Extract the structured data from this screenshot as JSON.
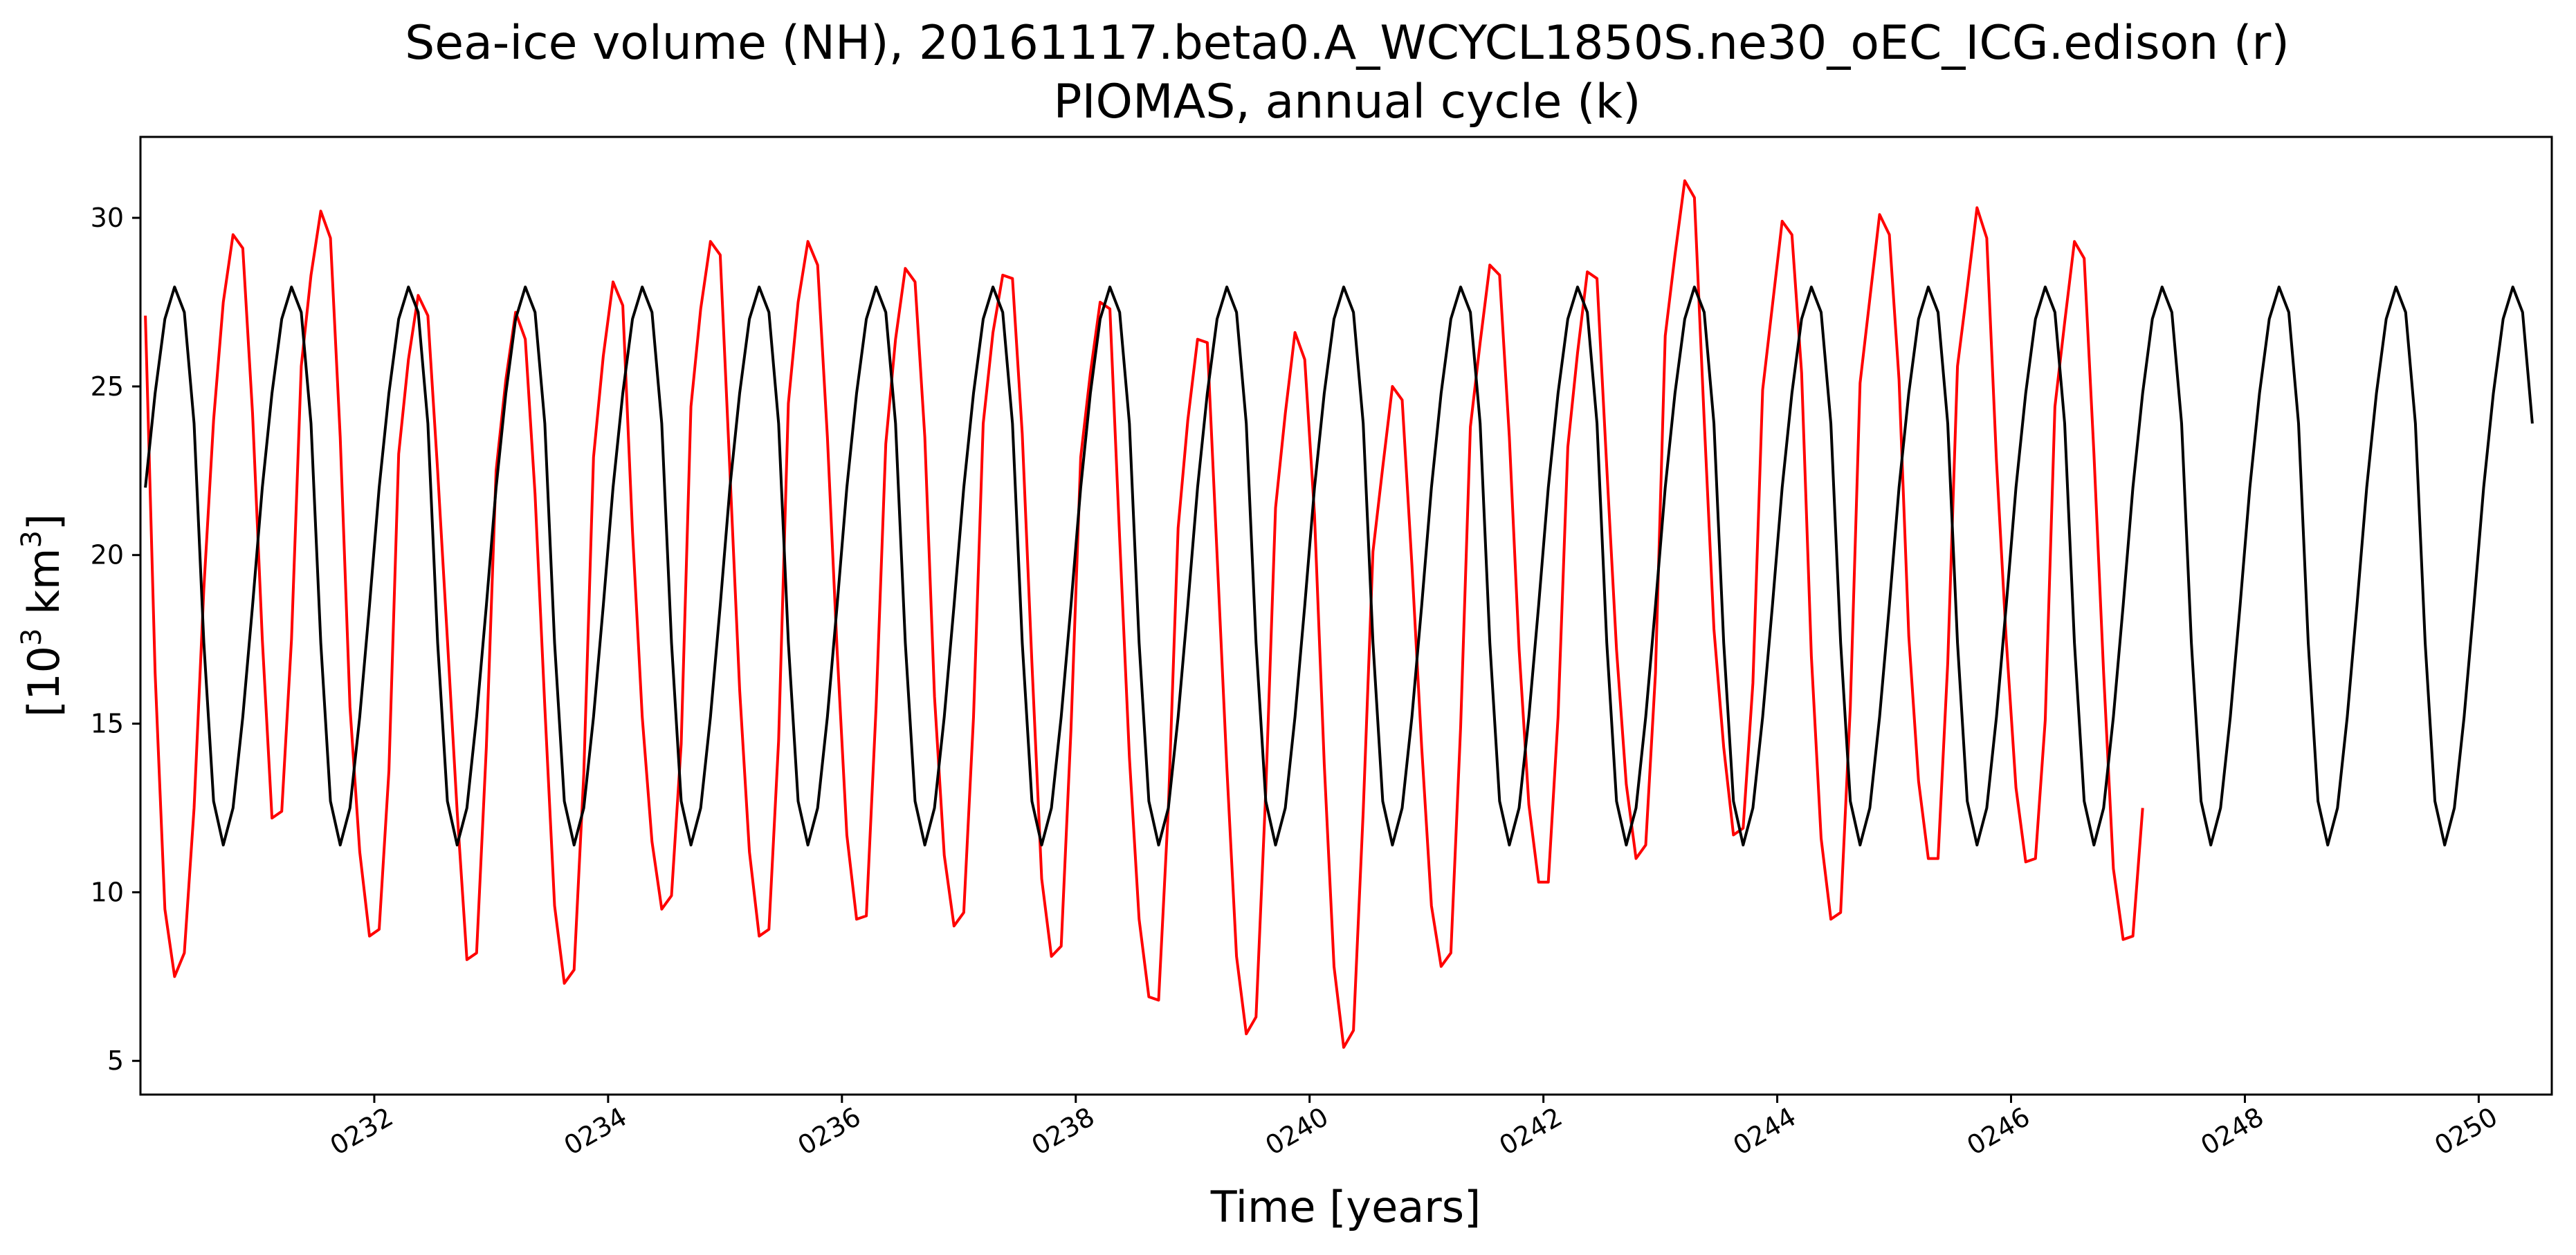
{
  "chart_data": {
    "type": "line",
    "title": "Sea-ice volume (NH), 20161117.beta0.A_WCYCL1850S.ne30_oEC_ICG.edison (r)",
    "subtitle": "PIOMAS, annual cycle (k)",
    "xlabel": "Time [years]",
    "ylabel_base": "[10",
    "ylabel_exp1": "3",
    "ylabel_mid": " km",
    "ylabel_exp2": "3",
    "ylabel_end": "]",
    "xlim": [
      230.0,
      250.625
    ],
    "ylim": [
      4.0,
      32.4
    ],
    "x_ticks": [
      232,
      234,
      236,
      238,
      240,
      242,
      244,
      246,
      248,
      250
    ],
    "x_tick_labels": [
      "0232",
      "0234",
      "0236",
      "0238",
      "0240",
      "0242",
      "0244",
      "0246",
      "0248",
      "0250"
    ],
    "y_ticks": [
      5,
      10,
      15,
      20,
      25,
      30
    ],
    "y_tick_labels": [
      "5",
      "10",
      "15",
      "20",
      "25",
      "30"
    ],
    "grid": false,
    "legend": "none",
    "x_start": 230.042,
    "x_step": 0.0833333,
    "series": [
      {
        "color": "#ff0000",
        "values": [
          27.1,
          16.5,
          9.5,
          7.5,
          8.2,
          12.5,
          19.0,
          24.0,
          27.5,
          29.5,
          29.1,
          24.2,
          17.5,
          12.2,
          12.4,
          17.5,
          25.6,
          28.3,
          30.2,
          29.4,
          23.5,
          15.5,
          11.2,
          8.7,
          8.9,
          13.6,
          23.0,
          25.8,
          27.7,
          27.1,
          22.5,
          17.5,
          12.4,
          8.0,
          8.2,
          14.3,
          22.5,
          25.2,
          27.2,
          26.4,
          21.8,
          15.5,
          9.6,
          7.3,
          7.7,
          13.5,
          22.9,
          25.9,
          28.1,
          27.4,
          20.7,
          15.2,
          11.5,
          9.5,
          9.9,
          14.4,
          24.4,
          27.3,
          29.3,
          28.9,
          22.5,
          16.0,
          11.2,
          8.7,
          8.9,
          14.5,
          24.5,
          27.5,
          29.3,
          28.6,
          23.5,
          17.2,
          11.7,
          9.2,
          9.3,
          15.5,
          23.3,
          26.4,
          28.5,
          28.1,
          23.5,
          15.8,
          11.1,
          9.0,
          9.4,
          15.2,
          23.9,
          26.6,
          28.3,
          28.2,
          23.6,
          16.8,
          10.4,
          8.1,
          8.4,
          14.8,
          22.9,
          25.4,
          27.5,
          27.3,
          20.5,
          14.0,
          9.2,
          6.9,
          6.8,
          12.5,
          20.8,
          24.0,
          26.4,
          26.3,
          20.0,
          13.7,
          8.1,
          5.8,
          6.3,
          13.0,
          21.4,
          24.2,
          26.6,
          25.8,
          21.2,
          13.8,
          7.8,
          5.4,
          5.9,
          12.4,
          20.1,
          22.6,
          25.0,
          24.6,
          19.7,
          14.3,
          9.6,
          7.8,
          8.2,
          14.9,
          23.8,
          26.3,
          28.6,
          28.3,
          23.5,
          17.2,
          12.6,
          10.3,
          10.3,
          15.2,
          23.2,
          26.0,
          28.4,
          28.2,
          22.6,
          17.2,
          13.2,
          11.0,
          11.4,
          16.5,
          26.5,
          28.9,
          31.1,
          30.6,
          24.0,
          17.8,
          14.3,
          11.7,
          11.9,
          16.2,
          24.9,
          27.4,
          29.9,
          29.5,
          25.4,
          17.0,
          11.6,
          9.2,
          9.4,
          15.5,
          25.1,
          27.6,
          30.1,
          29.5,
          25.2,
          17.6,
          13.3,
          11.0,
          11.0,
          16.8,
          25.6,
          27.9,
          30.3,
          29.4,
          22.8,
          17.5,
          13.1,
          10.9,
          11.0,
          15.1,
          24.4,
          26.9,
          29.3,
          28.8,
          23.0,
          16.5,
          10.7,
          8.6,
          8.7,
          12.5
        ]
      },
      {
        "color": "#000000",
        "cycle": [
          22.0,
          24.8,
          27.0,
          27.95,
          27.2,
          23.9,
          17.4,
          12.7,
          11.4,
          12.5,
          15.2,
          18.5
        ],
        "count": 246
      }
    ]
  }
}
